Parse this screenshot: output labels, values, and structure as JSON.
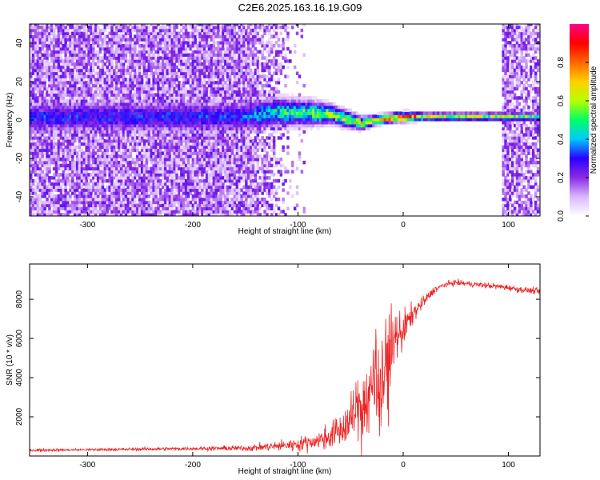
{
  "title": "C2E6.2025.163.16.19.G09",
  "chart_data": [
    {
      "type": "heatmap",
      "xlabel": "Height of straight line (km)",
      "ylabel": "Frequency (Hz)",
      "xlim": [
        -355,
        130
      ],
      "ylim": [
        -50,
        50
      ],
      "xticks": [
        -300,
        -200,
        -100,
        0,
        100
      ],
      "yticks": [
        -40,
        -20,
        0,
        20,
        40
      ],
      "colorbar": {
        "label": "Normalized spectral amplitude",
        "range": [
          0,
          1
        ],
        "ticks": [
          0.0,
          0.2,
          0.4,
          0.6,
          0.8
        ],
        "colors": [
          "#ffffff",
          "#d9b8ff",
          "#8a2be2",
          "#2b00ff",
          "#00c8ff",
          "#00ff66",
          "#b8ff00",
          "#ffd000",
          "#ff6600",
          "#ff0000",
          "#ff0088"
        ]
      },
      "signal_band": [
        {
          "x": -160,
          "f": 1.0,
          "width": 10,
          "amp": 0.3
        },
        {
          "x": -120,
          "f": 3.5,
          "width": 9,
          "amp": 0.45
        },
        {
          "x": -90,
          "f": 3.0,
          "width": 8,
          "amp": 0.5
        },
        {
          "x": -70,
          "f": 2.5,
          "width": 6,
          "amp": 0.55
        },
        {
          "x": -50,
          "f": -1.0,
          "width": 5,
          "amp": 0.6
        },
        {
          "x": -40,
          "f": -2.5,
          "width": 4,
          "amp": 0.65
        },
        {
          "x": -25,
          "f": -0.5,
          "width": 3,
          "amp": 0.7
        },
        {
          "x": -10,
          "f": 0.5,
          "width": 3,
          "amp": 0.8
        },
        {
          "x": 0,
          "f": 1.0,
          "width": 3,
          "amp": 0.85
        },
        {
          "x": 20,
          "f": 1.0,
          "width": 2.5,
          "amp": 0.6
        },
        {
          "x": 50,
          "f": 1.0,
          "width": 2.5,
          "amp": 0.55
        },
        {
          "x": 90,
          "f": 1.0,
          "width": 2.5,
          "amp": 0.55
        },
        {
          "x": 126,
          "f": 1.0,
          "width": 2.5,
          "amp": 0.5
        }
      ]
    },
    {
      "type": "line",
      "xlabel": "Height of straight line (km)",
      "ylabel": "SNR (10 * v/v)",
      "xlim": [
        -355,
        130
      ],
      "ylim": [
        0,
        9800
      ],
      "xticks": [
        -300,
        -200,
        -100,
        0,
        100
      ],
      "yticks": [
        2000,
        4000,
        6000,
        8000
      ],
      "series": [
        {
          "color": "#ee2222",
          "x": [
            -355,
            -300,
            -250,
            -200,
            -150,
            -120,
            -100,
            -80,
            -70,
            -60,
            -50,
            -45,
            -40,
            -35,
            -30,
            -25,
            -20,
            -15,
            -10,
            -5,
            0,
            5,
            10,
            15,
            20,
            25,
            30,
            40,
            50,
            60,
            70,
            80,
            90,
            100,
            110,
            120,
            130
          ],
          "y": [
            300,
            320,
            350,
            380,
            400,
            500,
            600,
            800,
            1000,
            1300,
            1800,
            2300,
            2700,
            3000,
            3300,
            3800,
            4300,
            5000,
            5700,
            6200,
            6500,
            6900,
            7300,
            7600,
            7900,
            8200,
            8500,
            8750,
            8850,
            8800,
            8750,
            8700,
            8650,
            8600,
            8500,
            8450,
            8400
          ],
          "noise": [
            60,
            60,
            65,
            75,
            120,
            200,
            280,
            400,
            550,
            750,
            1000,
            1200,
            1400,
            1600,
            1800,
            1900,
            1900,
            1600,
            1300,
            1000,
            800,
            600,
            400,
            300,
            250,
            200,
            150,
            120,
            120,
            120,
            120,
            120,
            120,
            130,
            130,
            130,
            130
          ]
        }
      ]
    }
  ]
}
